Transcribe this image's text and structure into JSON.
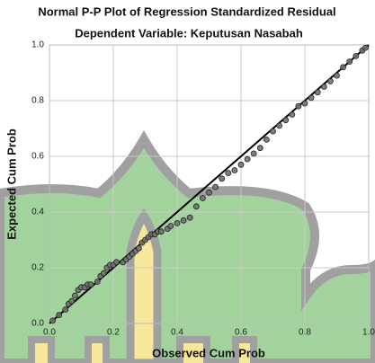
{
  "chart_data": {
    "type": "scatter",
    "title": "Normal P-P Plot of Regression Standardized Residual",
    "subtitle": "Dependent Variable: Keputusan Nasabah",
    "x_label": "Observed Cum Prob",
    "y_label": "Expected Cum Prob",
    "x": [
      0.01,
      0.03,
      0.05,
      0.06,
      0.07,
      0.08,
      0.09,
      0.1,
      0.11,
      0.12,
      0.13,
      0.15,
      0.16,
      0.17,
      0.18,
      0.19,
      0.2,
      0.21,
      0.23,
      0.24,
      0.25,
      0.26,
      0.27,
      0.28,
      0.29,
      0.3,
      0.31,
      0.32,
      0.33,
      0.34,
      0.35,
      0.37,
      0.38,
      0.4,
      0.42,
      0.44,
      0.46,
      0.48,
      0.5,
      0.52,
      0.54,
      0.56,
      0.58,
      0.6,
      0.62,
      0.64,
      0.66,
      0.68,
      0.7,
      0.72,
      0.74,
      0.76,
      0.78,
      0.8,
      0.82,
      0.84,
      0.86,
      0.88,
      0.9,
      0.92,
      0.94,
      0.96,
      0.98,
      0.99
    ],
    "values": [
      0.01,
      0.03,
      0.05,
      0.07,
      0.08,
      0.1,
      0.12,
      0.13,
      0.13,
      0.14,
      0.14,
      0.15,
      0.17,
      0.18,
      0.2,
      0.21,
      0.21,
      0.22,
      0.22,
      0.23,
      0.24,
      0.25,
      0.26,
      0.27,
      0.29,
      0.3,
      0.31,
      0.32,
      0.32,
      0.33,
      0.33,
      0.34,
      0.35,
      0.36,
      0.37,
      0.38,
      0.42,
      0.45,
      0.47,
      0.49,
      0.52,
      0.54,
      0.55,
      0.57,
      0.59,
      0.61,
      0.63,
      0.66,
      0.69,
      0.71,
      0.73,
      0.75,
      0.78,
      0.79,
      0.81,
      0.83,
      0.85,
      0.87,
      0.89,
      0.92,
      0.94,
      0.96,
      0.98,
      0.99
    ],
    "color": "#707070",
    "line_color": "#000000",
    "xlim": [
      0,
      1
    ],
    "ylim": [
      0,
      1
    ],
    "xticks": [
      {
        "value": 0,
        "label": "0.0"
      },
      0.2,
      0.4,
      0.6,
      0.8,
      {
        "value": 1,
        "label": "1.0"
      }
    ],
    "yticks": [
      {
        "value": 0,
        "label": "0.0"
      },
      0.2,
      0.4,
      0.6,
      0.8,
      {
        "value": 1,
        "label": "1.0"
      }
    ],
    "grid": true
  }
}
